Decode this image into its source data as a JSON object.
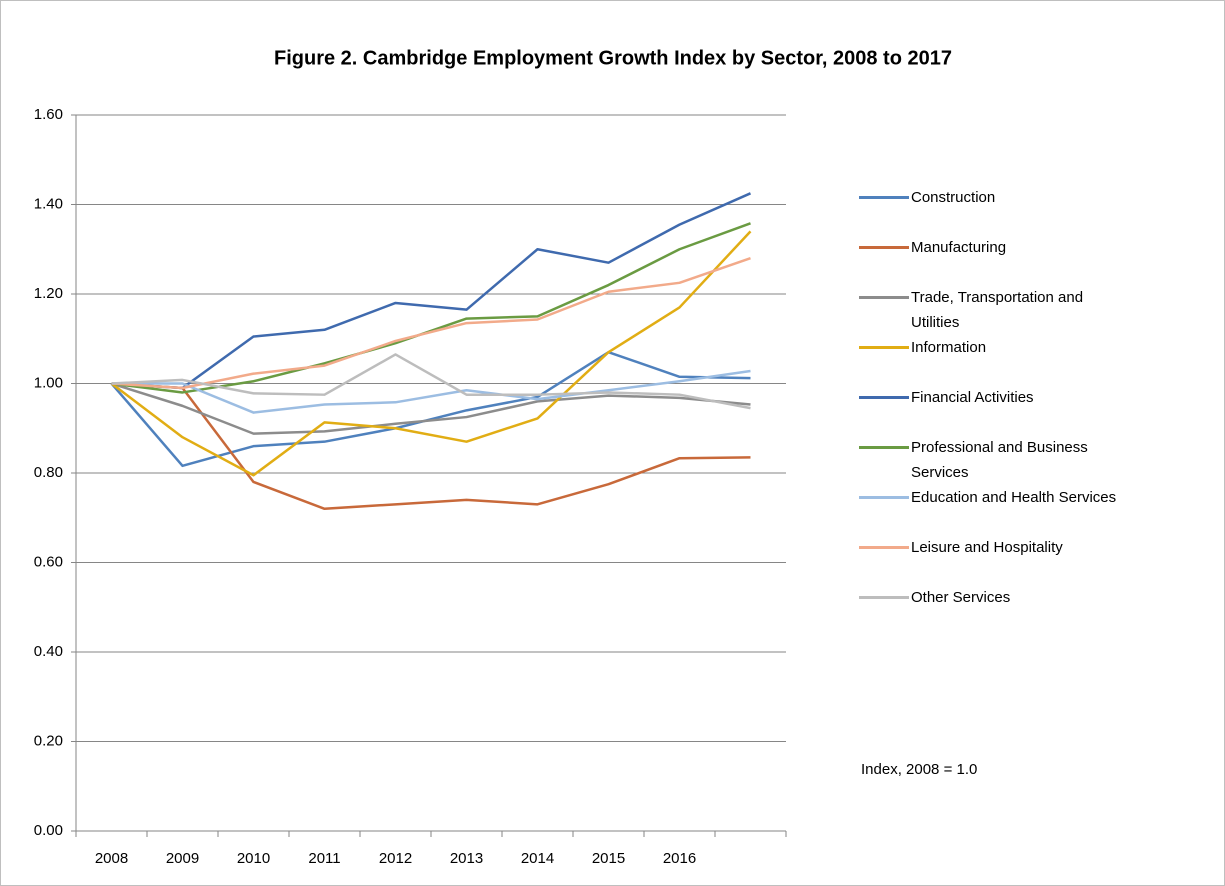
{
  "chart_data": {
    "type": "line",
    "title": "Figure 2.  Cambridge Employment Growth  Index by Sector, 2008 to 2017",
    "annotation": "Index, 2008 = 1.0",
    "categories": [
      "2008",
      "2009",
      "2010",
      "2011",
      "2012",
      "2013",
      "2014",
      "2015",
      "2016",
      null
    ],
    "ylim": [
      0,
      1.6
    ],
    "yticks": [
      {
        "value": 0,
        "label": "0.00"
      },
      {
        "value": 0.2,
        "label": "0.20"
      },
      {
        "value": 0.4,
        "label": "0.40"
      },
      {
        "value": 0.6,
        "label": "0.60"
      },
      {
        "value": 0.8,
        "label": "0.80"
      },
      {
        "value": 1.0,
        "label": "1.00"
      },
      {
        "value": 1.2,
        "label": "1.20"
      },
      {
        "value": 1.4,
        "label": "1.40"
      },
      {
        "value": 1.6,
        "label": "1.60"
      }
    ],
    "grid": true,
    "legend_position": "right",
    "series": [
      {
        "name": "Construction",
        "color": "#4f81bd",
        "values": [
          1.0,
          0.816,
          0.86,
          0.87,
          0.9,
          0.94,
          0.97,
          1.07,
          1.015,
          1.012
        ]
      },
      {
        "name": "Manufacturing",
        "color": "#c8693a",
        "values": [
          1.0,
          0.99,
          0.78,
          0.72,
          0.73,
          0.74,
          0.73,
          0.775,
          0.833,
          0.835
        ]
      },
      {
        "name": "Trade, Transportation and Utilities",
        "color": "#8c8c8c",
        "values": [
          1.0,
          0.95,
          0.888,
          0.893,
          0.91,
          0.925,
          0.96,
          0.973,
          0.968,
          0.953
        ]
      },
      {
        "name": "Information",
        "color": "#e1ad14",
        "values": [
          1.0,
          0.88,
          0.795,
          0.913,
          0.9,
          0.87,
          0.922,
          1.07,
          1.17,
          1.34
        ]
      },
      {
        "name": "Financial Activities",
        "color": "#3f6aae",
        "values": [
          1.0,
          0.99,
          1.105,
          1.12,
          1.18,
          1.165,
          1.3,
          1.27,
          1.355,
          1.425
        ]
      },
      {
        "name": "Professional and Business Services",
        "color": "#6a9b42",
        "values": [
          1.0,
          0.98,
          1.005,
          1.045,
          1.09,
          1.145,
          1.15,
          1.22,
          1.3,
          1.358
        ]
      },
      {
        "name": "Education and Health Services",
        "color": "#9cbde2",
        "values": [
          1.0,
          1.0,
          0.935,
          0.953,
          0.958,
          0.985,
          0.965,
          0.985,
          1.005,
          1.028
        ]
      },
      {
        "name": "Leisure and Hospitality",
        "color": "#f2aa8a",
        "values": [
          1.0,
          0.99,
          1.022,
          1.04,
          1.095,
          1.135,
          1.143,
          1.205,
          1.225,
          1.28
        ]
      },
      {
        "name": "Other Services",
        "color": "#bdbdbd",
        "values": [
          1.0,
          1.008,
          0.978,
          0.975,
          1.065,
          0.975,
          0.975,
          0.98,
          0.975,
          0.945
        ]
      }
    ]
  }
}
